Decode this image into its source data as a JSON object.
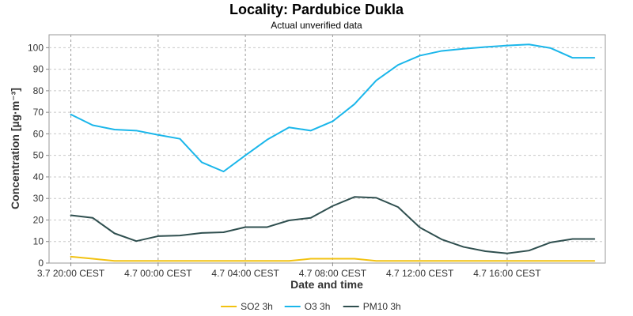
{
  "chart_data": {
    "type": "line",
    "title": "Locality: Pardubice Dukla",
    "subtitle": "Actual unverified data",
    "xlabel": "Date and time",
    "ylabel": "Concentration [µg·m⁻³]",
    "x_tick_labels": [
      "3.7 20:00 CEST",
      "4.7 00:00 CEST",
      "4.7 04:00 CEST",
      "4.7 08:00 CEST",
      "4.7 12:00 CEST",
      "4.7 16:00 CEST"
    ],
    "y_ticks": [
      0,
      10,
      20,
      30,
      40,
      50,
      60,
      70,
      80,
      90,
      100
    ],
    "ylim": [
      0,
      106
    ],
    "xlim": [
      -1,
      24.5
    ],
    "grid": true,
    "legend_position": "bottom",
    "x_hours": [
      0,
      1,
      2,
      3,
      4,
      5,
      6,
      7,
      8,
      9,
      10,
      11,
      12,
      13,
      14,
      15,
      16,
      17,
      18,
      19,
      20,
      21,
      22,
      23,
      24
    ],
    "series": [
      {
        "name": "SO2 3h",
        "color": "#f2c211",
        "values": [
          3.0,
          2.0,
          1.0,
          1.0,
          1.0,
          1.0,
          1.0,
          1.0,
          1.0,
          1.0,
          1.0,
          2.0,
          2.0,
          2.0,
          1.0,
          1.0,
          1.0,
          1.0,
          1.0,
          1.0,
          1.0,
          1.0,
          1.0,
          1.0,
          1.0
        ]
      },
      {
        "name": "O3 3h",
        "color": "#1ab6ea",
        "values": [
          69.0,
          64.0,
          62.0,
          61.5,
          59.5,
          57.7,
          46.8,
          42.5,
          50.0,
          57.3,
          63.0,
          61.5,
          65.8,
          73.8,
          84.8,
          92.0,
          96.3,
          98.5,
          99.5,
          100.3,
          101.0,
          101.5,
          99.8,
          95.3,
          95.3
        ]
      },
      {
        "name": "PM10 3h",
        "color": "#2f4f4f",
        "values": [
          22.2,
          21.0,
          13.8,
          10.2,
          12.5,
          12.8,
          14.0,
          14.3,
          16.7,
          16.7,
          19.8,
          21.0,
          26.5,
          30.7,
          30.3,
          26.0,
          16.5,
          11.0,
          7.5,
          5.5,
          4.5,
          5.8,
          9.6,
          11.2,
          11.2
        ]
      }
    ]
  }
}
